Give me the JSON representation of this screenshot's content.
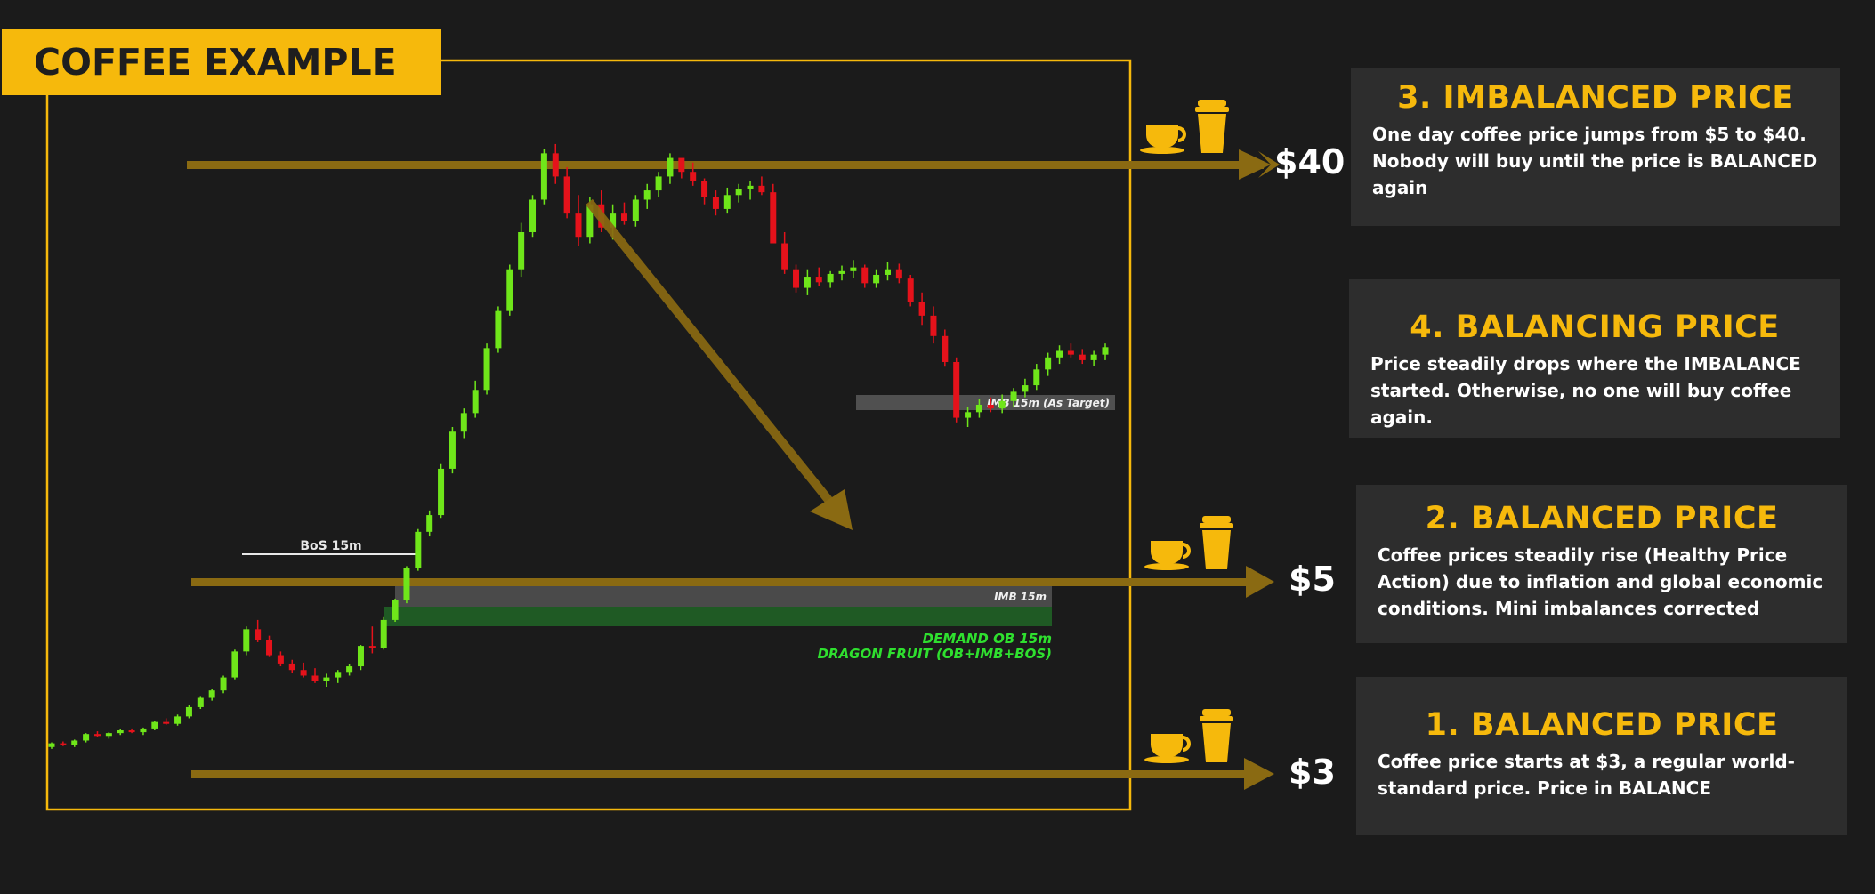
{
  "title": "COFFEE EXAMPLE",
  "price_levels": [
    {
      "label": "$40",
      "price": 40
    },
    {
      "label": "$5",
      "price": 5
    },
    {
      "label": "$3",
      "price": 3
    }
  ],
  "chart_annotations": {
    "bos": "BoS 15m",
    "imb_target": "IMB 15m (As Target)",
    "imb": "IMB 15m",
    "demand_line1": "DEMAND OB 15m",
    "demand_line2": "DRAGON FRUIT (OB+IMB+BOS)"
  },
  "panels": [
    {
      "heading": "3. IMBALANCED PRICE",
      "body": "One day coffee price jumps from $5 to $40. Nobody will buy until the price is BALANCED again"
    },
    {
      "heading": "4. BALANCING PRICE",
      "body": "Price steadily drops where the IMBALANCE started. Otherwise, no one will buy coffee again."
    },
    {
      "heading": "2. BALANCED PRICE",
      "body": "Coffee prices steadily rise (Healthy Price Action) due to inflation and global economic conditions. Mini imbalances corrected"
    },
    {
      "heading": "1. BALANCED PRICE",
      "body": "Coffee price starts at $3, a regular world-standard price. Price in BALANCE"
    }
  ],
  "icons": [
    "coffee-cup-icon",
    "takeaway-cup-icon"
  ],
  "colors": {
    "background": "#1b1b1b",
    "accent": "#f6b90c",
    "arrow": "#8a6a12",
    "bullish": "#6fe61a",
    "bearish": "#e5121b",
    "panel": "#2d2d2d",
    "demand_zone": "#1f5a24",
    "imbalance_zone": "#4a4a4a",
    "demand_text": "#2fe02f"
  },
  "chart_data": {
    "type": "candlestick",
    "series": [
      {
        "values": [
          [
            5,
            10,
            3,
            9
          ],
          [
            9,
            11,
            6,
            7
          ],
          [
            7,
            13,
            5,
            12
          ],
          [
            12,
            20,
            10,
            19
          ],
          [
            19,
            22,
            16,
            17
          ],
          [
            17,
            21,
            14,
            20
          ],
          [
            20,
            24,
            18,
            23
          ],
          [
            23,
            25,
            20,
            21
          ],
          [
            21,
            26,
            18,
            25
          ],
          [
            25,
            33,
            23,
            32
          ],
          [
            32,
            36,
            29,
            30
          ],
          [
            30,
            40,
            28,
            38
          ],
          [
            38,
            50,
            36,
            48
          ],
          [
            48,
            60,
            46,
            58
          ],
          [
            58,
            68,
            55,
            66
          ],
          [
            66,
            82,
            63,
            80
          ],
          [
            80,
            110,
            78,
            108
          ],
          [
            108,
            135,
            104,
            132
          ],
          [
            132,
            142,
            118,
            120
          ],
          [
            120,
            125,
            102,
            104
          ],
          [
            104,
            108,
            92,
            95
          ],
          [
            95,
            99,
            85,
            88
          ],
          [
            88,
            96,
            80,
            82
          ],
          [
            82,
            90,
            74,
            76
          ],
          [
            76,
            84,
            70,
            80
          ],
          [
            80,
            88,
            74,
            86
          ],
          [
            86,
            94,
            82,
            92
          ],
          [
            92,
            115,
            88,
            114
          ],
          [
            114,
            135,
            106,
            112
          ],
          [
            112,
            145,
            110,
            142
          ],
          [
            142,
            165,
            140,
            163
          ],
          [
            163,
            200,
            160,
            198
          ],
          [
            198,
            240,
            195,
            237
          ],
          [
            237,
            260,
            232,
            255
          ],
          [
            255,
            310,
            252,
            305
          ],
          [
            305,
            350,
            300,
            345
          ],
          [
            345,
            370,
            338,
            365
          ],
          [
            365,
            400,
            360,
            390
          ],
          [
            390,
            440,
            385,
            435
          ],
          [
            435,
            480,
            430,
            475
          ],
          [
            475,
            525,
            470,
            520
          ],
          [
            520,
            570,
            512,
            560
          ],
          [
            560,
            600,
            555,
            595
          ],
          [
            595,
            650,
            590,
            645
          ],
          [
            645,
            655,
            612,
            620
          ],
          [
            620,
            630,
            575,
            580
          ],
          [
            580,
            600,
            545,
            555
          ],
          [
            555,
            598,
            548,
            590
          ],
          [
            590,
            605,
            560,
            565
          ],
          [
            565,
            590,
            552,
            580
          ],
          [
            580,
            592,
            568,
            572
          ],
          [
            572,
            600,
            566,
            595
          ],
          [
            595,
            612,
            585,
            605
          ],
          [
            605,
            625,
            598,
            620
          ],
          [
            620,
            645,
            612,
            640
          ],
          [
            640,
            632,
            618,
            625
          ],
          [
            625,
            635,
            610,
            615
          ],
          [
            615,
            618,
            590,
            598
          ],
          [
            598,
            605,
            578,
            585
          ],
          [
            585,
            608,
            580,
            600
          ],
          [
            600,
            612,
            592,
            606
          ],
          [
            606,
            615,
            595,
            610
          ],
          [
            610,
            620,
            600,
            603
          ],
          [
            603,
            612,
            580,
            548
          ],
          [
            548,
            560,
            515,
            520
          ],
          [
            520,
            525,
            495,
            500
          ],
          [
            500,
            520,
            492,
            512
          ],
          [
            512,
            522,
            502,
            506
          ],
          [
            506,
            518,
            500,
            515
          ],
          [
            515,
            524,
            508,
            518
          ],
          [
            518,
            530,
            511,
            522
          ],
          [
            522,
            525,
            500,
            505
          ],
          [
            505,
            520,
            500,
            514
          ],
          [
            514,
            528,
            508,
            520
          ],
          [
            520,
            526,
            505,
            510
          ],
          [
            510,
            514,
            480,
            485
          ],
          [
            485,
            495,
            460,
            470
          ],
          [
            470,
            480,
            440,
            448
          ],
          [
            448,
            455,
            415,
            420
          ],
          [
            420,
            425,
            355,
            360
          ],
          [
            360,
            372,
            350,
            366
          ],
          [
            366,
            380,
            360,
            374
          ],
          [
            374,
            382,
            366,
            370
          ],
          [
            370,
            385,
            365,
            378
          ],
          [
            378,
            392,
            372,
            388
          ],
          [
            388,
            402,
            382,
            395
          ],
          [
            395,
            418,
            390,
            412
          ],
          [
            412,
            430,
            405,
            425
          ],
          [
            425,
            438,
            418,
            432
          ],
          [
            432,
            440,
            425,
            428
          ],
          [
            428,
            434,
            418,
            422
          ],
          [
            422,
            432,
            416,
            428
          ],
          [
            428,
            440,
            422,
            436
          ]
        ]
      }
    ],
    "bos_level_label": "BoS 15m",
    "zones": [
      "IMB 15m (As Target)",
      "IMB 15m",
      "DEMAND OB 15m"
    ]
  }
}
